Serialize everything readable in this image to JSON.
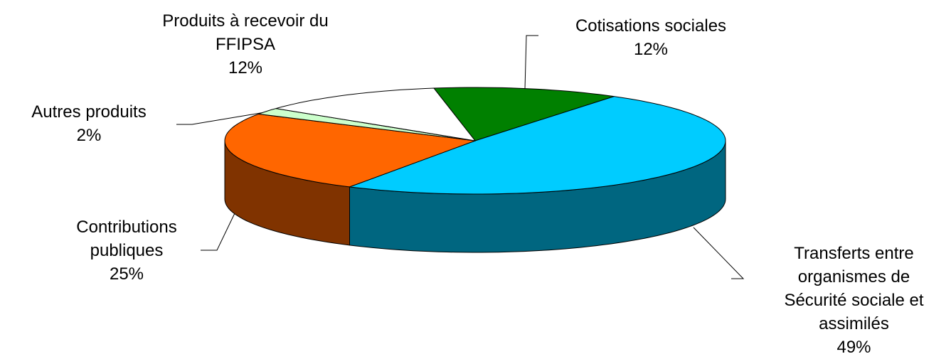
{
  "chart_data": {
    "type": "pie3d",
    "categories": [
      "Cotisations sociales",
      "Transferts entre organismes de Sécurité sociale et assimilés",
      "Contributions publiques",
      "Autres produits",
      "Produits à recevoir du FFIPSA"
    ],
    "values": [
      12,
      49,
      25,
      2,
      12
    ],
    "value_labels": [
      "12%",
      "49%",
      "25%",
      "2%",
      "12%"
    ],
    "colors": [
      "#008000",
      "#00ccff",
      "#ff6600",
      "#ccffcc",
      "#ffffff"
    ]
  }
}
